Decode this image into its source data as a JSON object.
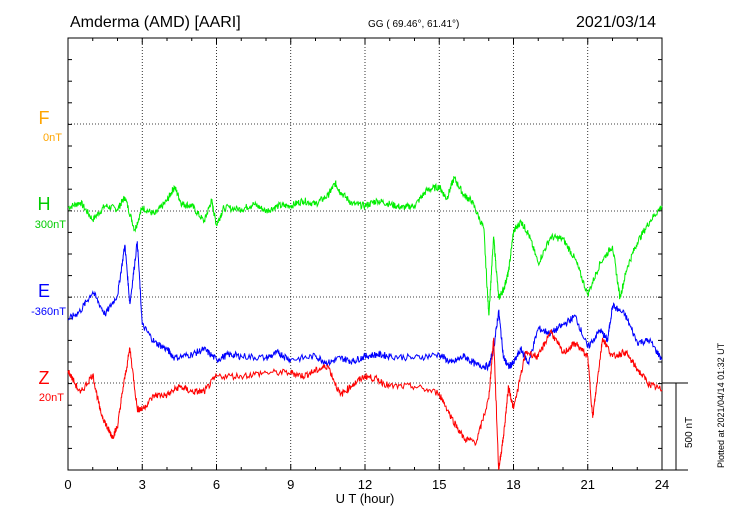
{
  "header": {
    "station": "Amderma (AMD)  [AARI]",
    "coords": "GG ( 69.46°,  61.41°)",
    "date": "2021/03/14"
  },
  "footer": {
    "scale": "500 nT",
    "plotted": "Plotted at 2021/04/14 01:32 UT"
  },
  "colors": {
    "F": "#ffa500",
    "H": "#00ee00",
    "E": "#0000ff",
    "Z": "#ff0000"
  },
  "chart_data": {
    "type": "line",
    "xlabel": "U T (hour)",
    "xlim": [
      0,
      24
    ],
    "xticks": [
      "0",
      "3",
      "6",
      "9",
      "12",
      "15",
      "18",
      "21",
      "24"
    ],
    "scale_bar_nT": 500,
    "components": [
      {
        "name": "F",
        "baseline_label": "0nT"
      },
      {
        "name": "H",
        "baseline_label": "300nT"
      },
      {
        "name": "E",
        "baseline_label": "-360nT"
      },
      {
        "name": "Z",
        "baseline_label": "20nT"
      }
    ],
    "series": [
      {
        "name": "H",
        "x": [
          0,
          0.5,
          1,
          1.5,
          2,
          2.3,
          2.7,
          3,
          3.5,
          4,
          4.3,
          4.6,
          5,
          5.5,
          5.8,
          6,
          6.3,
          7,
          7.5,
          8,
          8.5,
          9,
          9.5,
          10,
          10.5,
          10.8,
          11,
          11.5,
          12,
          12.5,
          13,
          13.5,
          14,
          14.5,
          15,
          15.3,
          15.6,
          16,
          16.3,
          16.8,
          17,
          17.2,
          17.4,
          17.6,
          17.8,
          18,
          18.3,
          18.6,
          19,
          19.5,
          20,
          20.5,
          21,
          21.5,
          22,
          22.3,
          22.6,
          23,
          23.5,
          24
        ],
        "y": [
          20,
          50,
          -50,
          30,
          10,
          80,
          -110,
          20,
          -20,
          60,
          140,
          40,
          30,
          -60,
          60,
          -80,
          20,
          10,
          40,
          0,
          30,
          30,
          60,
          40,
          90,
          160,
          110,
          40,
          30,
          60,
          40,
          20,
          30,
          120,
          140,
          70,
          190,
          90,
          60,
          -100,
          -600,
          -150,
          -500,
          -450,
          -350,
          -120,
          -60,
          -130,
          -300,
          -150,
          -160,
          -280,
          -480,
          -300,
          -200,
          -500,
          -320,
          -180,
          -60,
          30
        ]
      },
      {
        "name": "E",
        "x": [
          0,
          0.5,
          1,
          1.5,
          2,
          2.3,
          2.5,
          2.8,
          3,
          3.5,
          4,
          4.3,
          5,
          5.5,
          6,
          6.5,
          7,
          8,
          8.5,
          9,
          10,
          10.5,
          11,
          11.5,
          12,
          12.5,
          13,
          14,
          15,
          15.5,
          16,
          16.5,
          17,
          17.2,
          17.4,
          17.6,
          17.8,
          18,
          18.3,
          18.6,
          19,
          19.5,
          20,
          20.5,
          21,
          21.5,
          21.8,
          22,
          22.5,
          23,
          23.5,
          24
        ],
        "y": [
          -130,
          -80,
          30,
          -100,
          10,
          300,
          -40,
          320,
          -160,
          -260,
          -300,
          -350,
          -330,
          -300,
          -360,
          -330,
          -340,
          -350,
          -320,
          -360,
          -340,
          -380,
          -350,
          -370,
          -340,
          -330,
          -340,
          -350,
          -330,
          -380,
          -340,
          -390,
          -400,
          -300,
          -80,
          -350,
          -400,
          -380,
          -300,
          -380,
          -180,
          -210,
          -160,
          -110,
          -290,
          -190,
          -250,
          -50,
          -100,
          -260,
          -250,
          -360
        ]
      },
      {
        "name": "Z",
        "x": [
          0,
          0.5,
          1,
          1.3,
          1.6,
          1.8,
          2,
          2.2,
          2.5,
          2.8,
          3,
          3.5,
          4,
          4.5,
          5,
          5.5,
          6,
          7,
          8,
          9,
          9.5,
          10,
          10.5,
          11,
          11.5,
          12,
          12.5,
          13,
          14,
          15,
          15.5,
          16,
          16.5,
          17,
          17.2,
          17.4,
          17.6,
          17.8,
          18,
          18.5,
          19,
          19.5,
          20,
          20.5,
          21,
          21.2,
          21.4,
          21.6,
          22,
          22.5,
          23,
          23.5,
          24
        ],
        "y": [
          70,
          -60,
          50,
          -160,
          -260,
          -310,
          -250,
          -50,
          200,
          -150,
          -150,
          -70,
          -70,
          -20,
          -50,
          -50,
          40,
          40,
          60,
          60,
          40,
          70,
          100,
          -70,
          -10,
          40,
          20,
          -20,
          -20,
          -60,
          -200,
          -320,
          -340,
          -90,
          260,
          -500,
          -300,
          -20,
          -150,
          180,
          150,
          300,
          170,
          230,
          150,
          -200,
          30,
          260,
          150,
          180,
          80,
          -10,
          -40
        ]
      }
    ]
  }
}
